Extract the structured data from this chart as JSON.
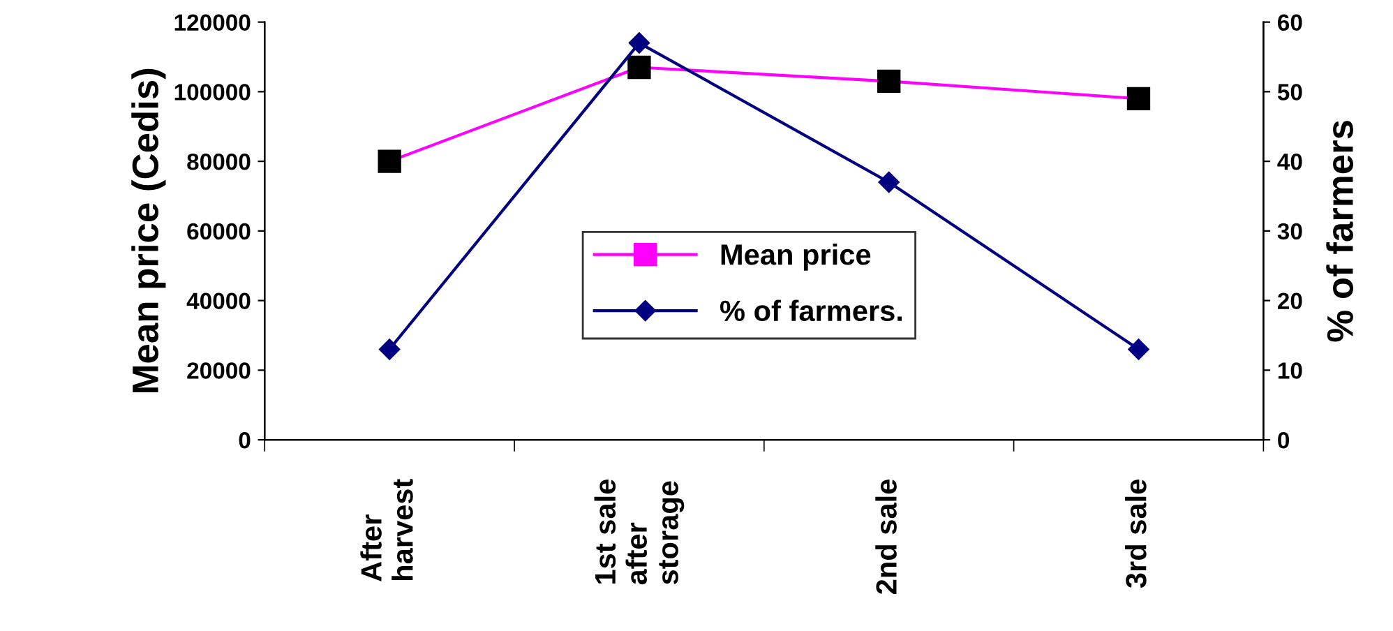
{
  "chart_data": {
    "type": "line",
    "ylabel": "Mean price (Cedis)",
    "y2label": "% of farmers",
    "categories": [
      "After\nharvest",
      "1st sale\nafter\nstorage",
      "2nd sale",
      "3rd sale"
    ],
    "series": [
      {
        "name": "Mean price",
        "color": "#ff00ff",
        "marker": "square",
        "values": [
          80000,
          107000,
          103000,
          98000
        ]
      },
      {
        "name": "% of farmers.",
        "color": "#000080",
        "marker": "diamond",
        "axis": "y2",
        "values": [
          13,
          57,
          37,
          13
        ]
      }
    ],
    "ylim": [
      0,
      120000
    ],
    "yticks": [
      0,
      20000,
      40000,
      60000,
      80000,
      100000,
      120000
    ],
    "y2lim": [
      0,
      60
    ],
    "y2ticks": [
      0,
      10,
      20,
      30,
      40,
      50,
      60
    ],
    "legend": "center",
    "grid": false
  }
}
